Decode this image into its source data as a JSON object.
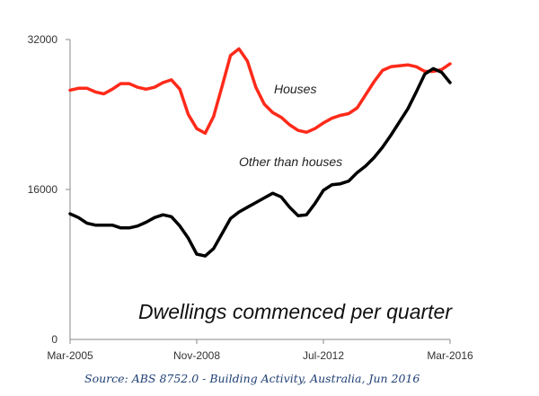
{
  "chart_data": {
    "type": "line",
    "title": "Dwellings commenced per quarter",
    "source": "Source: ABS 8752.0 - Building Activity, Australia, Jun 2016",
    "xlabel": "",
    "ylabel": "",
    "ylim": [
      0,
      32000
    ],
    "y_ticks": [
      0,
      16000,
      32000
    ],
    "y_tick_labels": [
      "0",
      "16000",
      "32000"
    ],
    "x_tick_labels": [
      "Mar-2005",
      "Nov-2008",
      "Jul-2012",
      "Mar-2016"
    ],
    "x_tick_index": [
      0,
      15,
      30,
      45
    ],
    "grid": false,
    "colors": {
      "houses": "#ff2a1a",
      "other": "#000000",
      "axis": "#888888"
    },
    "annotations": {
      "houses": "Houses",
      "other": "Other than houses"
    },
    "series": [
      {
        "name": "Houses",
        "color": "#ff2a1a",
        "values": [
          26600,
          26800,
          26800,
          26400,
          26200,
          26700,
          27300,
          27300,
          26900,
          26700,
          26900,
          27400,
          27700,
          26700,
          24000,
          22500,
          22000,
          23800,
          27000,
          30300,
          31000,
          29700,
          26900,
          25100,
          24200,
          23700,
          22900,
          22300,
          22100,
          22500,
          23100,
          23600,
          23900,
          24100,
          24700,
          26100,
          27500,
          28700,
          29100,
          29200,
          29300,
          29100,
          28600,
          28600,
          28800,
          29400
        ]
      },
      {
        "name": "Other than houses",
        "color": "#000000",
        "values": [
          13400,
          13000,
          12400,
          12200,
          12200,
          12200,
          11900,
          11900,
          12100,
          12500,
          13000,
          13300,
          13100,
          12100,
          10800,
          9100,
          8900,
          9700,
          11300,
          12900,
          13600,
          14100,
          14600,
          15100,
          15600,
          15200,
          14100,
          13200,
          13300,
          14500,
          15900,
          16500,
          16600,
          16900,
          17800,
          18500,
          19400,
          20500,
          21800,
          23200,
          24600,
          26400,
          28300,
          28900,
          28500,
          27400
        ]
      }
    ]
  }
}
